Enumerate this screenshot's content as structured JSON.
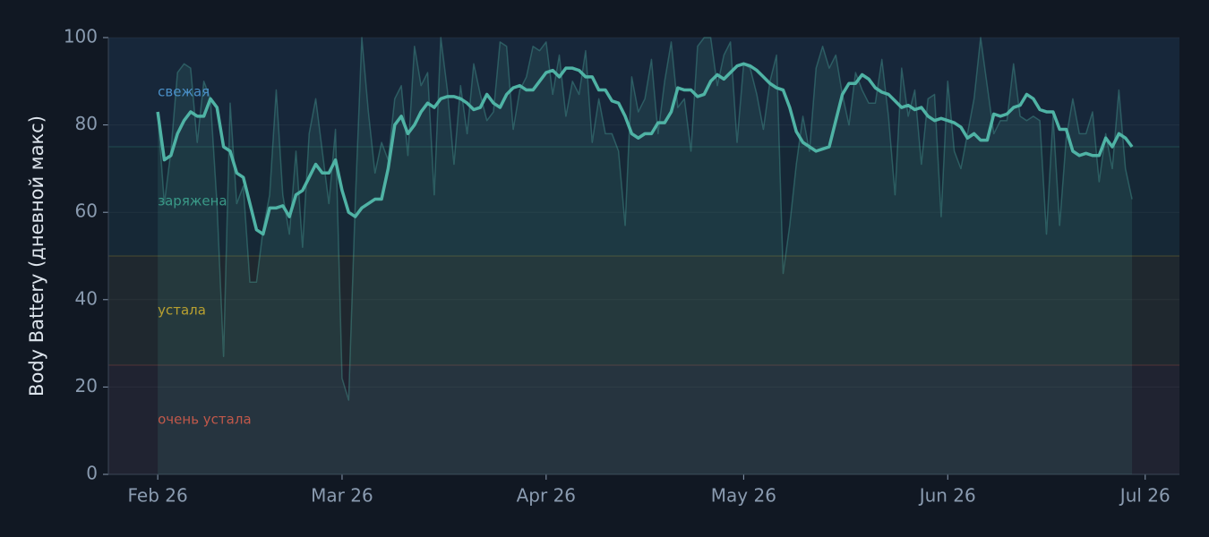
{
  "chart_data": {
    "type": "line",
    "ylabel": "Body Battery (дневной макс)",
    "x": [
      0,
      1,
      2,
      3,
      4,
      5,
      6,
      7,
      8,
      9,
      10,
      11,
      12,
      13,
      14,
      15,
      16,
      17,
      18,
      19,
      20,
      21,
      22,
      23,
      24,
      25,
      26,
      27,
      28,
      29,
      30,
      31,
      32,
      33,
      34,
      35,
      36,
      37,
      38,
      39,
      40,
      41,
      42,
      43,
      44,
      45,
      46,
      47,
      48,
      49,
      50,
      51,
      52,
      53,
      54,
      55,
      56,
      57,
      58,
      59,
      60,
      61,
      62,
      63,
      64,
      65,
      66,
      67,
      68,
      69,
      70,
      71,
      72,
      73,
      74,
      75,
      76,
      77,
      78,
      79,
      80,
      81,
      82,
      83,
      84,
      85,
      86,
      87,
      88,
      89,
      90,
      91,
      92,
      93,
      94,
      95,
      96,
      97,
      98,
      99,
      100,
      101,
      102,
      103,
      104,
      105,
      106,
      107,
      108,
      109,
      110,
      111,
      112,
      113,
      114,
      115,
      116,
      117,
      118,
      119,
      120,
      121,
      122,
      123,
      124,
      125,
      126,
      127,
      128,
      129,
      130,
      131,
      132,
      133,
      134,
      135,
      136,
      137,
      138,
      139,
      140,
      141,
      142,
      143,
      144,
      145,
      146,
      147,
      148
    ],
    "series": [
      {
        "color": "#4fb3a5",
        "area": true,
        "width": 1.5,
        "opacity": 0.35,
        "values": [
          83,
          62,
          74,
          92,
          94,
          93,
          76,
          90,
          86,
          62,
          27,
          85,
          62,
          66,
          44,
          44,
          56,
          64,
          88,
          64,
          55,
          74,
          52,
          78,
          86,
          74,
          62,
          79,
          22,
          17,
          62,
          100,
          83,
          69,
          76,
          72,
          86,
          89,
          73,
          98,
          89,
          92,
          64,
          100,
          88,
          71,
          89,
          78,
          94,
          87,
          81,
          83,
          99,
          98,
          79,
          88,
          91,
          98,
          97,
          99,
          87,
          96,
          82,
          90,
          87,
          97,
          76,
          86,
          78,
          78,
          74,
          57,
          91,
          83,
          86,
          95,
          78,
          90,
          99,
          84,
          86,
          74,
          98,
          100,
          100,
          89,
          96,
          99,
          76,
          94,
          93,
          87,
          79,
          90,
          96,
          46,
          57,
          71,
          82,
          74,
          93,
          98,
          93,
          96,
          87,
          80,
          92,
          88,
          85,
          85,
          95,
          82,
          64,
          93,
          82,
          88,
          71,
          86,
          87,
          59,
          90,
          74,
          70,
          78,
          86,
          100,
          89,
          78,
          81,
          81,
          94,
          82,
          81,
          82,
          81,
          55,
          82,
          57,
          77,
          86,
          78,
          78,
          83,
          67,
          78,
          70,
          88,
          70,
          63
        ]
      },
      {
        "color": "#4fb3a5",
        "area": false,
        "width": 3.5,
        "opacity": 1,
        "values": [
          83,
          72,
          73,
          78,
          81,
          83,
          82,
          82,
          86,
          84,
          75,
          74,
          69,
          68,
          62,
          56,
          55,
          61,
          61,
          61.5,
          59,
          64,
          65,
          68,
          71,
          69,
          69,
          72,
          65,
          60,
          59,
          61,
          62,
          63,
          63,
          70,
          80,
          82,
          78,
          80,
          83,
          85,
          84,
          86,
          86.5,
          86.5,
          86,
          85,
          83.5,
          84,
          87,
          85,
          84,
          87,
          88.5,
          89,
          88,
          88,
          90,
          92,
          92.5,
          91,
          93,
          93,
          92.5,
          91,
          91,
          88,
          88,
          85.5,
          85,
          82,
          78,
          77,
          78,
          78,
          80.5,
          80.5,
          83,
          88.5,
          88,
          88,
          86.5,
          87,
          90,
          91.5,
          90.5,
          92,
          93.5,
          94,
          93.5,
          92.5,
          91,
          89.5,
          88.5,
          88,
          84,
          78.5,
          76,
          75,
          74,
          74.5,
          75,
          81,
          87,
          89.5,
          89.5,
          91.5,
          90.5,
          88.5,
          87.5,
          87,
          85.5,
          84,
          84.5,
          83.5,
          84,
          82,
          81,
          81.5,
          81,
          80.5,
          79.5,
          77,
          78,
          76.5,
          76.5,
          82.5,
          82,
          82.5,
          84,
          84.5,
          87,
          86,
          83.5,
          83,
          83,
          79,
          79,
          74,
          73,
          73.5,
          73,
          73,
          77,
          75,
          78,
          77,
          75
        ]
      }
    ],
    "zones": [
      {
        "label": "свежая",
        "from": 75,
        "to": 100,
        "color": "#4a90c8"
      },
      {
        "label": "заряжена",
        "from": 50,
        "to": 75,
        "color": "#3a9a88"
      },
      {
        "label": "устала",
        "from": 25,
        "to": 50,
        "color": "#b8a030"
      },
      {
        "label": "очень устала",
        "from": 0,
        "to": 25,
        "color": "#c0584a"
      }
    ],
    "xlim": [
      -7.5,
      155.2
    ],
    "xticks": [
      {
        "value": 0,
        "label": "Feb 26"
      },
      {
        "value": 28,
        "label": "Mar 26"
      },
      {
        "value": 59,
        "label": "Apr 26"
      },
      {
        "value": 89,
        "label": "May 26"
      },
      {
        "value": 120,
        "label": "Jun 26"
      },
      {
        "value": 150,
        "label": "Jul 26"
      }
    ],
    "ylim": [
      0,
      100
    ],
    "yticks": [
      0,
      20,
      40,
      60,
      80,
      100
    ]
  }
}
